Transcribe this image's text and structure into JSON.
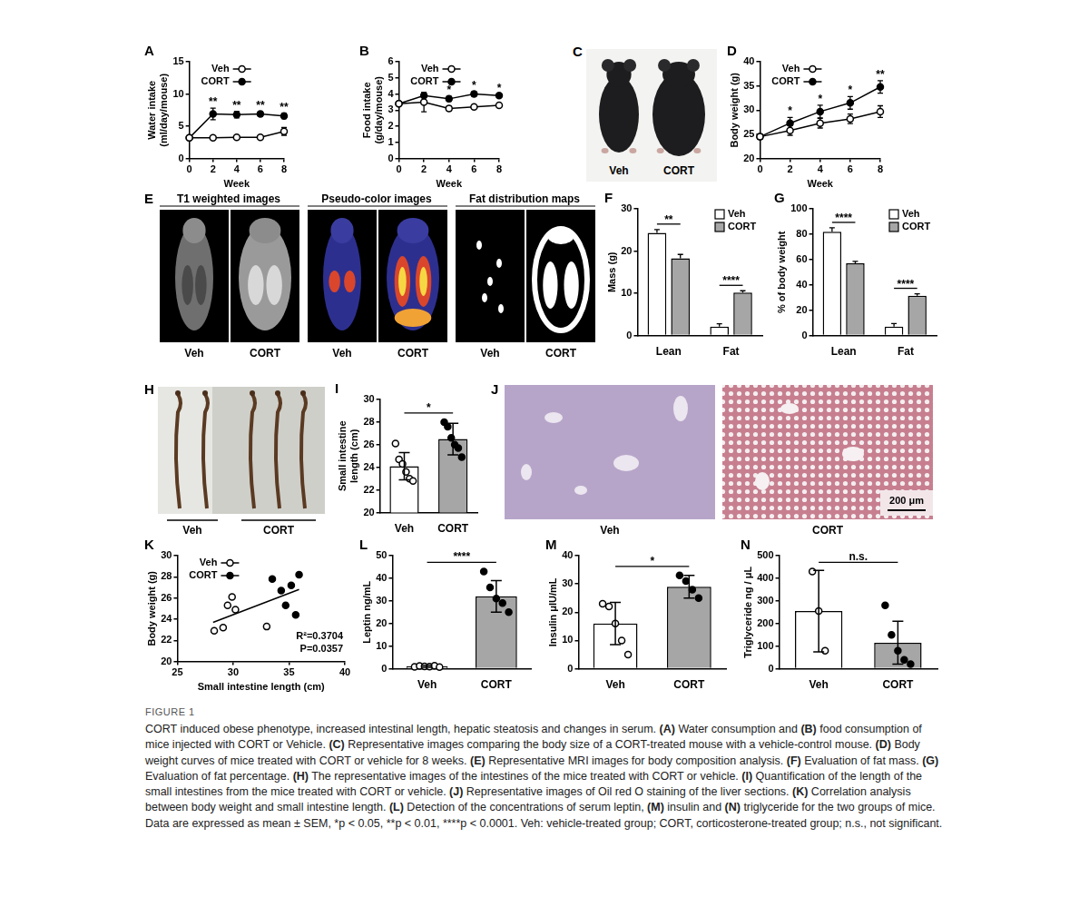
{
  "chart_data": [
    {
      "panel": "A",
      "type": "line",
      "x_label": "Week",
      "y_label": "Water intake\n(ml/day/mouse)",
      "x": [
        0,
        2,
        4,
        6,
        8
      ],
      "xlim": [
        0,
        8
      ],
      "xticks": [
        0,
        2,
        4,
        6,
        8
      ],
      "ylim": [
        0,
        15
      ],
      "yticks": [
        0,
        5,
        10,
        15
      ],
      "grid": false,
      "legend": "upper left",
      "series": [
        {
          "name": "Veh",
          "color": "#000000",
          "marker": "open_circle",
          "values": [
            3.2,
            3.2,
            3.3,
            3.3,
            4.2
          ],
          "errors": [
            0.2,
            0.2,
            0.2,
            0.2,
            0.6
          ]
        },
        {
          "name": "CORT",
          "color": "#000000",
          "marker": "circle",
          "values": [
            3.2,
            6.9,
            6.8,
            6.9,
            6.6
          ],
          "errors": [
            0.2,
            0.9,
            0.5,
            0.4,
            0.4
          ],
          "significance": [
            null,
            "**",
            "**",
            "**",
            "**"
          ]
        }
      ]
    },
    {
      "panel": "B",
      "type": "line",
      "x_label": "Week",
      "y_label": "Food intake\n(g/day/mouse)",
      "x": [
        0,
        2,
        4,
        6,
        8
      ],
      "xlim": [
        0,
        8
      ],
      "xticks": [
        0,
        2,
        4,
        6,
        8
      ],
      "ylim": [
        0,
        6
      ],
      "yticks": [
        0,
        1,
        2,
        3,
        4,
        5,
        6
      ],
      "grid": false,
      "legend": "upper left",
      "series": [
        {
          "name": "Veh",
          "color": "#000000",
          "marker": "open_circle",
          "values": [
            3.4,
            3.5,
            3.1,
            3.2,
            3.3
          ],
          "errors": [
            0.1,
            0.6,
            0.15,
            0.05,
            0.05
          ]
        },
        {
          "name": "CORT",
          "color": "#000000",
          "marker": "circle",
          "values": [
            3.4,
            3.9,
            3.7,
            4.0,
            3.9
          ],
          "errors": [
            0.1,
            0.1,
            0.15,
            0.15,
            0.05
          ],
          "significance": [
            null,
            null,
            "*",
            "*",
            "*"
          ]
        }
      ]
    },
    {
      "panel": "D",
      "type": "line",
      "x_label": "Week",
      "y_label": "Body weight (g)",
      "x": [
        0,
        2,
        4,
        6,
        8
      ],
      "xlim": [
        0,
        8
      ],
      "xticks": [
        0,
        2,
        4,
        6,
        8
      ],
      "ylim": [
        20,
        40
      ],
      "yticks": [
        20,
        25,
        30,
        35,
        40
      ],
      "grid": false,
      "legend": "upper left",
      "series": [
        {
          "name": "Veh",
          "color": "#000000",
          "marker": "open_circle",
          "values": [
            24.5,
            25.8,
            27.3,
            28.2,
            29.7
          ],
          "errors": [
            0.5,
            1.0,
            1.0,
            1.0,
            1.2
          ]
        },
        {
          "name": "CORT",
          "color": "#000000",
          "marker": "circle",
          "values": [
            24.5,
            27.3,
            29.7,
            31.5,
            34.8
          ],
          "errors": [
            0.5,
            1.2,
            1.3,
            1.3,
            1.3
          ],
          "significance": [
            null,
            "*",
            "*",
            "*",
            "**"
          ]
        }
      ]
    },
    {
      "panel": "F",
      "type": "bar",
      "y_label": "Mass (g)",
      "categories": [
        "Lean",
        "Fat"
      ],
      "ylim": [
        0,
        30
      ],
      "yticks": [
        0,
        10,
        20,
        30
      ],
      "grid": false,
      "legend": "upper right",
      "series": [
        {
          "name": "Veh",
          "color": "#ffffff",
          "values": [
            24.3,
            2.1
          ],
          "errors": [
            0.8,
            0.7
          ]
        },
        {
          "name": "CORT",
          "color": "#a6a6a6",
          "values": [
            18.3,
            10.2
          ],
          "errors": [
            0.9,
            0.4
          ]
        }
      ],
      "significance": [
        "**",
        "****"
      ]
    },
    {
      "panel": "G",
      "type": "bar",
      "y_label": "% of body weight",
      "categories": [
        "Lean",
        "Fat"
      ],
      "ylim": [
        0,
        100
      ],
      "yticks": [
        0,
        20,
        40,
        60,
        80,
        100
      ],
      "grid": false,
      "legend": "upper right",
      "series": [
        {
          "name": "Veh",
          "color": "#ffffff",
          "values": [
            82,
            7
          ],
          "errors": [
            3,
            2.5
          ]
        },
        {
          "name": "CORT",
          "color": "#a6a6a6",
          "values": [
            57,
            31.5
          ],
          "errors": [
            1.5,
            1.5
          ]
        }
      ],
      "significance": [
        "****",
        "****"
      ]
    },
    {
      "panel": "I",
      "type": "bar",
      "y_label": "Small intestine\nlength (cm)",
      "categories": [
        "Veh",
        "CORT"
      ],
      "colors": [
        "#ffffff",
        "#a6a6a6"
      ],
      "values": [
        24.1,
        26.5
      ],
      "errors": [
        1.2,
        1.4
      ],
      "points": [
        [
          26.1,
          24.7,
          24.3,
          23.6,
          23.0,
          22.8
        ],
        [
          28.0,
          27.6,
          26.6,
          26.0,
          25.7,
          24.9
        ]
      ],
      "ylim": [
        20,
        30
      ],
      "yticks": [
        20,
        22,
        24,
        26,
        28,
        30
      ],
      "grid": false,
      "significance": "*"
    },
    {
      "panel": "K",
      "type": "scatter",
      "x_label": "Small intestine length (cm)",
      "y_label": "Body weight (g)",
      "xlim": [
        25,
        40
      ],
      "xticks": [
        25,
        30,
        35,
        40
      ],
      "ylim": [
        20,
        30
      ],
      "yticks": [
        20,
        22,
        24,
        26,
        28,
        30
      ],
      "grid": false,
      "legend": "upper left",
      "series": [
        {
          "name": "Veh",
          "color": "#000000",
          "marker": "open_circle",
          "x": [
            28.3,
            29.1,
            29.5,
            29.9,
            30.2,
            33.0
          ],
          "values": [
            22.9,
            23.2,
            25.3,
            26.1,
            24.9,
            23.3
          ]
        },
        {
          "name": "CORT",
          "color": "#000000",
          "marker": "circle",
          "x": [
            33.5,
            34.3,
            34.7,
            35.2,
            35.9,
            35.6
          ],
          "values": [
            27.8,
            26.7,
            25.3,
            27.2,
            28.2,
            24.4
          ]
        }
      ],
      "trend_line": {
        "x": [
          28.2,
          35.9
        ],
        "values": [
          23.7,
          26.8
        ]
      },
      "annotations": [
        "R²=0.3704",
        "P=0.0357"
      ]
    },
    {
      "panel": "L",
      "type": "bar",
      "y_label": "Leptin ng/mL",
      "categories": [
        "Veh",
        "CORT"
      ],
      "colors": [
        "#ffffff",
        "#a6a6a6"
      ],
      "values": [
        1.0,
        32.0
      ],
      "errors": [
        0.4,
        7.0
      ],
      "points": [
        [
          0.8,
          1.2,
          1.0,
          0.9,
          1.3,
          0.7
        ],
        [
          43,
          36,
          31,
          29,
          25
        ]
      ],
      "ylim": [
        0,
        50
      ],
      "yticks": [
        0,
        10,
        20,
        30,
        40,
        50
      ],
      "grid": false,
      "significance": "****"
    },
    {
      "panel": "M",
      "type": "bar",
      "y_label": "Insulin μIU/mL",
      "categories": [
        "Veh",
        "CORT"
      ],
      "colors": [
        "#ffffff",
        "#a6a6a6"
      ],
      "values": [
        16.0,
        29.0
      ],
      "errors": [
        7.5,
        4.0
      ],
      "points": [
        [
          23,
          22,
          16,
          10,
          5
        ],
        [
          33,
          31,
          28,
          25
        ]
      ],
      "ylim": [
        0,
        40
      ],
      "yticks": [
        0,
        10,
        20,
        30,
        40
      ],
      "grid": false,
      "significance": "*"
    },
    {
      "panel": "N",
      "type": "bar",
      "y_label": "Triglyceride ng / μL",
      "categories": [
        "Veh",
        "CORT"
      ],
      "colors": [
        "#ffffff",
        "#a6a6a6"
      ],
      "values": [
        255,
        115
      ],
      "errors": [
        180,
        95
      ],
      "points": [
        [
          430,
          255,
          80
        ],
        [
          280,
          150,
          80,
          40,
          20
        ]
      ],
      "ylim": [
        0,
        500
      ],
      "yticks": [
        0,
        100,
        200,
        300,
        400,
        500
      ],
      "grid": false,
      "significance": "n.s."
    }
  ],
  "images": [
    {
      "panel": "C",
      "labels": [
        "Veh",
        "CORT"
      ]
    },
    {
      "panel": "E",
      "groups": [
        {
          "title": "T1 weighted images",
          "labels": [
            "Veh",
            "CORT"
          ]
        },
        {
          "title": "Pseudo-color images",
          "labels": [
            "Veh",
            "CORT"
          ]
        },
        {
          "title": "Fat distribution maps",
          "labels": [
            "Veh",
            "CORT"
          ]
        }
      ]
    },
    {
      "panel": "H",
      "labels": [
        "Veh",
        "CORT"
      ]
    },
    {
      "panel": "J",
      "labels": [
        "Veh",
        "CORT"
      ],
      "scale_bar": "200 μm"
    }
  ],
  "caption": {
    "label": "FIGURE 1",
    "text": "CORT induced obese phenotype, increased intestinal length, hepatic steatosis and changes in serum. (A) Water consumption and (B) food consumption of mice injected with CORT or Vehicle. (C) Representative images comparing the body size of a CORT-treated mouse with a vehicle-control mouse. (D) Body weight curves of mice treated with CORT or vehicle for 8 weeks. (E) Representative MRI images for body composition analysis. (F) Evaluation of fat mass. (G) Evaluation of fat percentage. (H) The representative images of the intestines of the mice treated with CORT or vehicle. (I) Quantification of the length of the small intestines from the mice treated with CORT or vehicle. (J) Representative images of Oil red O staining of the liver sections. (K) Correlation analysis between body weight and small intestine length. (L) Detection of the concentrations of serum leptin, (M) insulin and (N) triglyceride for the two groups of mice. Data are expressed as mean ± SEM, *p < 0.05, **p < 0.01, ****p < 0.0001. Veh: vehicle-treated group; CORT, corticosterone-treated group; n.s., not significant."
  }
}
